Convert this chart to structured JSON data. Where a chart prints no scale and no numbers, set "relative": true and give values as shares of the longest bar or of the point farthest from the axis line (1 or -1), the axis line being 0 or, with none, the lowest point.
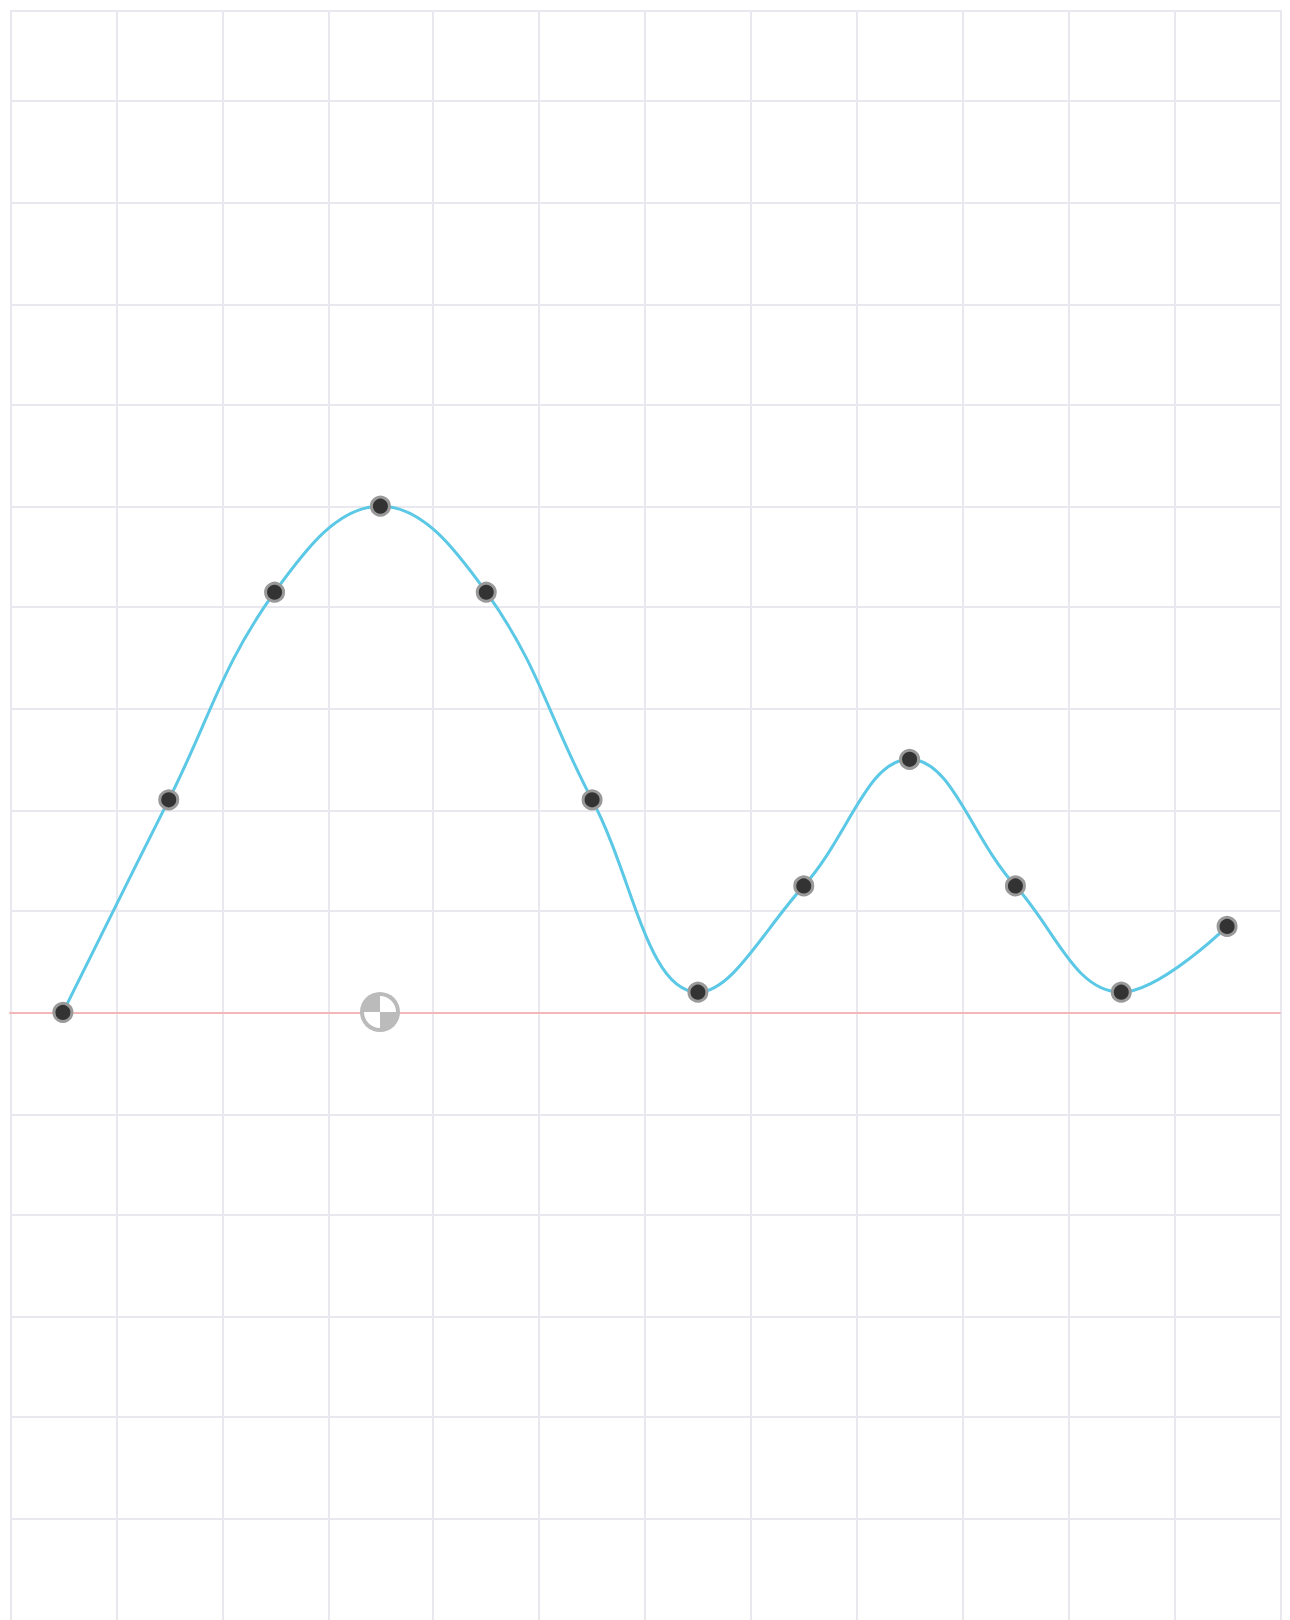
{
  "chart_data": {
    "type": "line",
    "relative": true,
    "categories": [
      null,
      null,
      null,
      null,
      null,
      null,
      null,
      null,
      null,
      null,
      null,
      null
    ],
    "series": [
      {
        "color": "#5bc8e6",
        "values": [
          0,
          0.42,
          0.83,
          1,
          0.83,
          0.42,
          0.04,
          0.25,
          0.5,
          0.25,
          0.04,
          0.17
        ]
      }
    ],
    "grid": true,
    "marker": "circle",
    "line_style": "solid"
  }
}
